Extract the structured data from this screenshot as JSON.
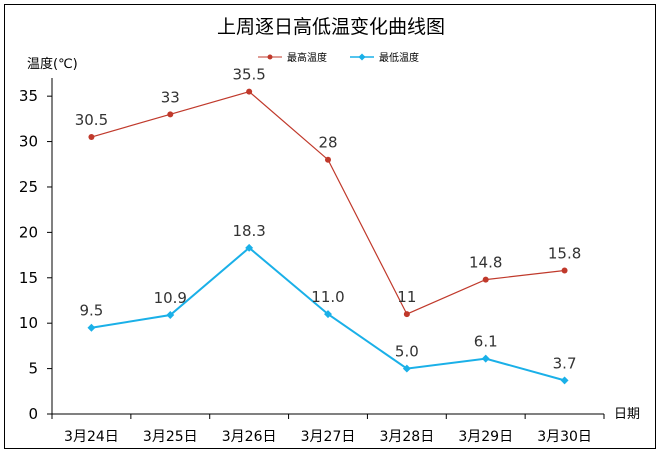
{
  "chart_data": {
    "type": "line",
    "title": "上周逐日高低温变化曲线图",
    "ylabel": "温度(℃)",
    "xlabel": "日期",
    "categories": [
      "3月24日",
      "3月25日",
      "3月26日",
      "3月27日",
      "3月28日",
      "3月29日",
      "3月30日"
    ],
    "yticks": [
      0,
      5,
      10,
      15,
      20,
      25,
      30,
      35
    ],
    "ylim": [
      0,
      37
    ],
    "grid": false,
    "legend_position": "top",
    "series": [
      {
        "name": "最高温度",
        "values": [
          30.5,
          33,
          35.5,
          28,
          11,
          14.8,
          15.8
        ],
        "labels": [
          "30.5",
          "33",
          "35.5",
          "28",
          "11",
          "14.8",
          "15.8"
        ],
        "color": "#c0392b",
        "marker": "circle"
      },
      {
        "name": "最低温度",
        "values": [
          9.5,
          10.9,
          18.3,
          11.0,
          5.0,
          6.1,
          3.7
        ],
        "labels": [
          "9.5",
          "10.9",
          "18.3",
          "11.0",
          "5.0",
          "6.1",
          "3.7"
        ],
        "color": "#1ab0e8",
        "marker": "diamond"
      }
    ]
  }
}
